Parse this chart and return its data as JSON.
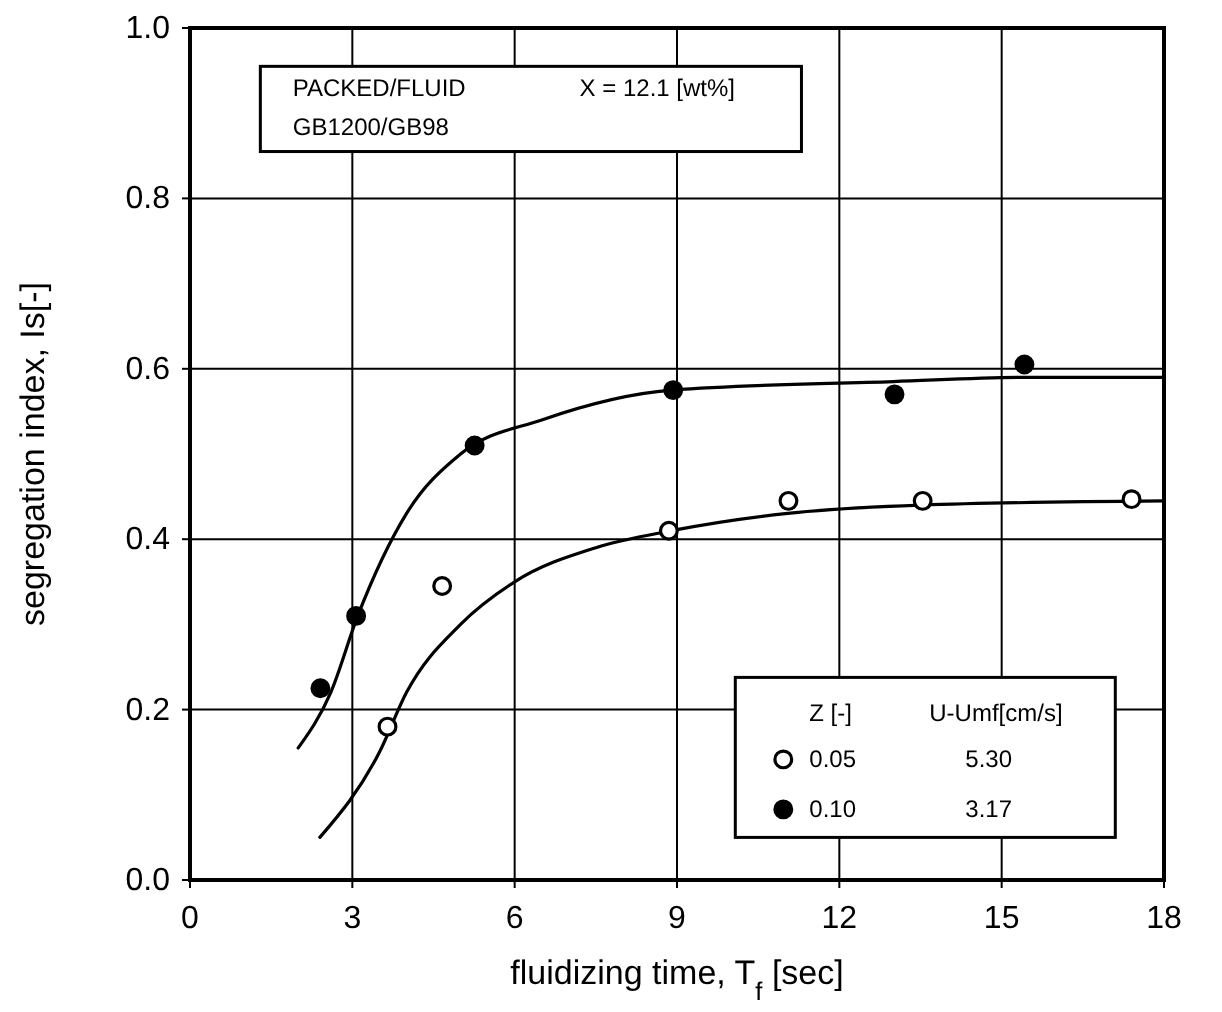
{
  "chart_data": {
    "type": "scatter",
    "xlabel": "fluidizing time, T$_{f}$  [sec]",
    "ylabel": "segregation index, Is[-]",
    "legend_title": "Z [-]",
    "annotations": [
      "PACKED/FLUID",
      "X = 12.1 [wt%]",
      "GB1200/GB98",
      "U-Umf[cm/s]",
      "5.30",
      "3.17"
    ],
    "xlim": [
      0,
      18
    ],
    "xticks": [
      0,
      3,
      6,
      9,
      12,
      15,
      18
    ],
    "ylim": [
      0,
      1
    ],
    "yticks": [
      {
        "value": 0,
        "label": "0.0"
      },
      {
        "value": 0.2,
        "label": "0.2"
      },
      {
        "value": 0.4,
        "label": "0.4"
      },
      {
        "value": 0.6,
        "label": "0.6"
      },
      {
        "value": 0.8,
        "label": "0.8"
      },
      {
        "value": 1,
        "label": "1.0"
      }
    ],
    "grid": true,
    "legend": "bottom right",
    "marker": "circle",
    "series": [
      {
        "type": "line",
        "color": "#000000",
        "marker": "none",
        "x": [
          2.0,
          2.6,
          3.1,
          4.0,
          5.0,
          6.5,
          8.9,
          13,
          15.5,
          18
        ],
        "values": [
          0.155,
          0.22,
          0.31,
          0.43,
          0.5,
          0.54,
          0.575,
          0.585,
          0.59,
          0.59
        ]
      },
      {
        "type": "line",
        "color": "#000000",
        "marker": "none",
        "x": [
          2.4,
          3.5,
          4.0,
          5.0,
          6.0,
          7.5,
          8.9,
          11,
          13.5,
          18
        ],
        "values": [
          0.05,
          0.15,
          0.22,
          0.3,
          0.35,
          0.39,
          0.41,
          0.43,
          0.44,
          0.445
        ]
      },
      {
        "name": "0.05",
        "color": "#ffffff",
        "x": [
          3.65,
          4.66,
          8.85,
          11.06,
          13.54,
          17.4
        ],
        "values": [
          0.18,
          0.345,
          0.41,
          0.445,
          0.445,
          0.447
        ]
      },
      {
        "name": "0.10",
        "color": "#000000",
        "x": [
          2.41,
          3.07,
          5.26,
          8.93,
          13.02,
          15.42
        ],
        "values": [
          0.225,
          0.31,
          0.51,
          0.575,
          0.57,
          0.605
        ]
      }
    ]
  }
}
